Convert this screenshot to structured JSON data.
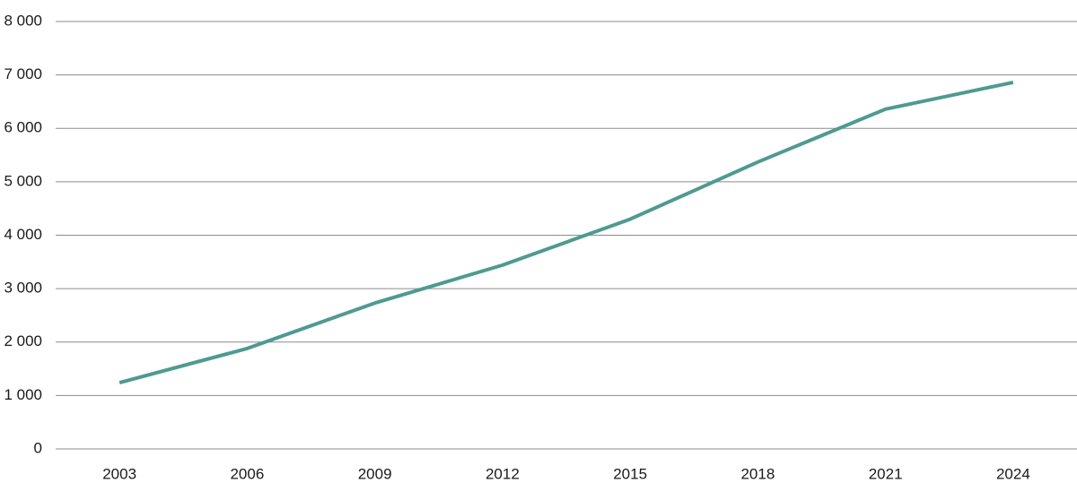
{
  "chart_data": {
    "type": "line",
    "categories": [
      "2003",
      "2006",
      "2009",
      "2012",
      "2015",
      "2018",
      "2021",
      "2024"
    ],
    "series": [
      {
        "color": "#4f9a90",
        "values": [
          1240,
          1880,
          2730,
          3440,
          4300,
          5370,
          6360,
          6860
        ]
      }
    ],
    "ylim": [
      0,
      8000
    ],
    "yticks": [
      0,
      {
        "value": 1000,
        "label": "1 000"
      },
      {
        "value": 2000,
        "label": "2 000"
      },
      {
        "value": 3000,
        "label": "3 000"
      },
      {
        "value": 4000,
        "label": "4 000"
      },
      {
        "value": 5000,
        "label": "5 000"
      },
      {
        "value": 6000,
        "label": "6 000"
      },
      {
        "value": 7000,
        "label": "7 000"
      },
      {
        "value": 8000,
        "label": "8 000"
      }
    ],
    "grid": true
  }
}
